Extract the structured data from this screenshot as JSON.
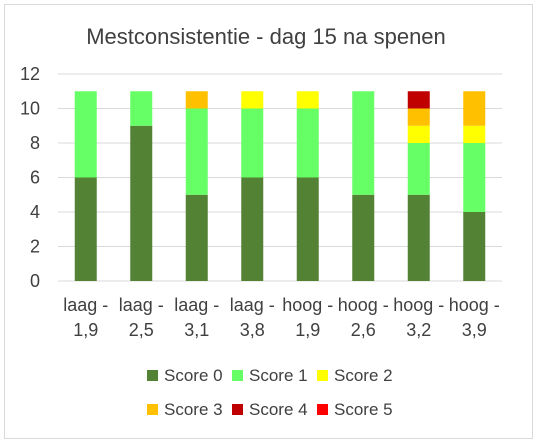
{
  "chart_data": {
    "type": "bar",
    "stacked": true,
    "title": "Mestconsistentie - dag 15 na spenen",
    "xlabel": "",
    "ylabel": "",
    "ylim": [
      0,
      12
    ],
    "yticks": [
      0,
      2,
      4,
      6,
      8,
      10,
      12
    ],
    "grid": true,
    "legend_position": "bottom",
    "categories": [
      [
        "laag -",
        "1,9"
      ],
      [
        "laag -",
        "2,5"
      ],
      [
        "laag -",
        "3,1"
      ],
      [
        "laag -",
        "3,8"
      ],
      [
        "hoog -",
        "1,9"
      ],
      [
        "hoog -",
        "2,6"
      ],
      [
        "hoog -",
        "3,2"
      ],
      [
        "hoog -",
        "3,9"
      ]
    ],
    "series": [
      {
        "name": "Score 0",
        "color": "#548235",
        "values": [
          6,
          9,
          5,
          6,
          6,
          5,
          5,
          4
        ]
      },
      {
        "name": "Score 1",
        "color": "#66FF66",
        "values": [
          5,
          2,
          5,
          4,
          4,
          6,
          3,
          4
        ]
      },
      {
        "name": "Score 2",
        "color": "#FFFF00",
        "values": [
          0,
          0,
          0,
          1,
          1,
          0,
          1,
          1
        ]
      },
      {
        "name": "Score 3",
        "color": "#FFC000",
        "values": [
          0,
          0,
          1,
          0,
          0,
          0,
          1,
          2
        ]
      },
      {
        "name": "Score 4",
        "color": "#C00000",
        "values": [
          0,
          0,
          0,
          0,
          0,
          0,
          1,
          0
        ]
      },
      {
        "name": "Score 5",
        "color": "#FF0000",
        "values": [
          0,
          0,
          0,
          0,
          0,
          0,
          0,
          0
        ]
      }
    ]
  }
}
